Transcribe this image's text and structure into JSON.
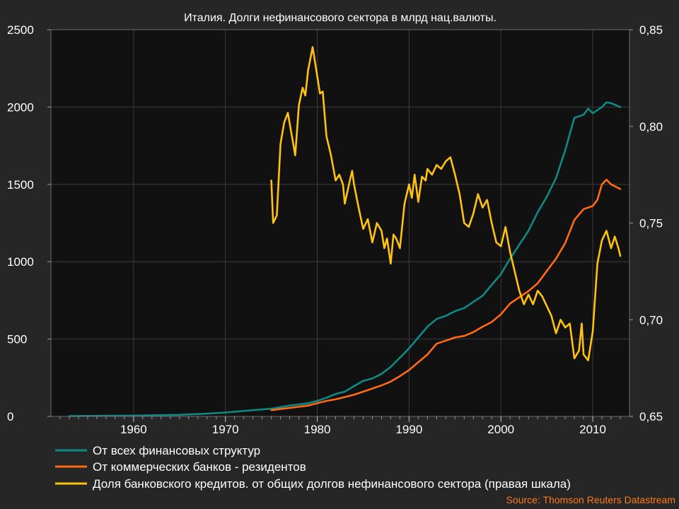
{
  "chart_data": {
    "type": "line",
    "title": "Италия. Долги нефинансового сектора в млрд нац.валюты.",
    "source": "Source: Thomson Reuters Datastream",
    "x_range": [
      1951,
      2014
    ],
    "x_ticks": [
      1960,
      1970,
      1980,
      1990,
      2000,
      2010
    ],
    "left_axis": {
      "range": [
        0,
        2500
      ],
      "ticks": [
        "0",
        "500",
        "1000",
        "1500",
        "2000",
        "2500"
      ],
      "tick_values": [
        0,
        500,
        1000,
        1500,
        2000,
        2500
      ]
    },
    "right_axis": {
      "range": [
        0.65,
        0.85
      ],
      "ticks": [
        "0,65",
        "0,70",
        "0,75",
        "0,80",
        "0,85"
      ],
      "tick_values": [
        0.65,
        0.7,
        0.75,
        0.8,
        0.85
      ]
    },
    "grid": true,
    "legend_position": "bottom",
    "colors": {
      "background": "#262626",
      "plot_background": "#111111",
      "grid": "#3c3c3c"
    },
    "series": [
      {
        "name": "От всех финансовых структур",
        "axis": "left",
        "color": "#0e8a86",
        "points": [
          [
            1953,
            2
          ],
          [
            1955,
            3
          ],
          [
            1960,
            5
          ],
          [
            1965,
            10
          ],
          [
            1968,
            18
          ],
          [
            1970,
            25
          ],
          [
            1972,
            35
          ],
          [
            1975,
            50
          ],
          [
            1977,
            70
          ],
          [
            1979,
            85
          ],
          [
            1980,
            100
          ],
          [
            1981,
            120
          ],
          [
            1982,
            145
          ],
          [
            1983,
            160
          ],
          [
            1984,
            195
          ],
          [
            1985,
            230
          ],
          [
            1986,
            245
          ],
          [
            1987,
            275
          ],
          [
            1988,
            320
          ],
          [
            1989,
            380
          ],
          [
            1990,
            440
          ],
          [
            1991,
            510
          ],
          [
            1992,
            580
          ],
          [
            1993,
            630
          ],
          [
            1994,
            650
          ],
          [
            1995,
            680
          ],
          [
            1996,
            700
          ],
          [
            1997,
            740
          ],
          [
            1998,
            780
          ],
          [
            1999,
            850
          ],
          [
            2000,
            920
          ],
          [
            2001,
            1020
          ],
          [
            2002,
            1110
          ],
          [
            2003,
            1200
          ],
          [
            2004,
            1320
          ],
          [
            2005,
            1420
          ],
          [
            2006,
            1540
          ],
          [
            2007,
            1720
          ],
          [
            2008,
            1930
          ],
          [
            2009,
            1950
          ],
          [
            2009.5,
            1990
          ],
          [
            2010,
            1960
          ],
          [
            2011,
            2000
          ],
          [
            2011.5,
            2030
          ],
          [
            2012,
            2025
          ],
          [
            2013,
            2000
          ]
        ]
      },
      {
        "name": "От коммерческих банков - резидентов",
        "axis": "left",
        "color": "#ff6a13",
        "points": [
          [
            1975,
            40
          ],
          [
            1977,
            55
          ],
          [
            1979,
            70
          ],
          [
            1980,
            85
          ],
          [
            1981,
            100
          ],
          [
            1982,
            110
          ],
          [
            1983,
            125
          ],
          [
            1984,
            140
          ],
          [
            1985,
            160
          ],
          [
            1986,
            180
          ],
          [
            1987,
            200
          ],
          [
            1988,
            225
          ],
          [
            1989,
            260
          ],
          [
            1990,
            300
          ],
          [
            1991,
            350
          ],
          [
            1992,
            400
          ],
          [
            1993,
            470
          ],
          [
            1994,
            490
          ],
          [
            1995,
            510
          ],
          [
            1996,
            520
          ],
          [
            1997,
            545
          ],
          [
            1998,
            580
          ],
          [
            1999,
            610
          ],
          [
            2000,
            660
          ],
          [
            2001,
            730
          ],
          [
            2002,
            770
          ],
          [
            2003,
            810
          ],
          [
            2004,
            860
          ],
          [
            2005,
            940
          ],
          [
            2006,
            1020
          ],
          [
            2007,
            1120
          ],
          [
            2008,
            1270
          ],
          [
            2009,
            1340
          ],
          [
            2010,
            1360
          ],
          [
            2010.5,
            1400
          ],
          [
            2011,
            1500
          ],
          [
            2011.5,
            1530
          ],
          [
            2012,
            1500
          ],
          [
            2013,
            1470
          ]
        ]
      },
      {
        "name": "Доля банковского кредитов. от общих долгов нефинансового сектора (правая шкала)",
        "axis": "right",
        "color": "#ffc20e",
        "points": [
          [
            1975,
            0.772
          ],
          [
            1975.2,
            0.75
          ],
          [
            1975.6,
            0.754
          ],
          [
            1976,
            0.791
          ],
          [
            1976.4,
            0.802
          ],
          [
            1976.8,
            0.807
          ],
          [
            1977.2,
            0.796
          ],
          [
            1977.6,
            0.785
          ],
          [
            1978,
            0.811
          ],
          [
            1978.4,
            0.82
          ],
          [
            1978.7,
            0.816
          ],
          [
            1979,
            0.829
          ],
          [
            1979.5,
            0.841
          ],
          [
            1980,
            0.826
          ],
          [
            1980.3,
            0.817
          ],
          [
            1980.6,
            0.818
          ],
          [
            1981,
            0.795
          ],
          [
            1981.5,
            0.785
          ],
          [
            1982,
            0.772
          ],
          [
            1982.4,
            0.775
          ],
          [
            1982.8,
            0.77
          ],
          [
            1983,
            0.76
          ],
          [
            1983.5,
            0.771
          ],
          [
            1983.8,
            0.777
          ],
          [
            1984,
            0.77
          ],
          [
            1984.5,
            0.758
          ],
          [
            1985,
            0.747
          ],
          [
            1985.5,
            0.752
          ],
          [
            1986,
            0.74
          ],
          [
            1986.5,
            0.75
          ],
          [
            1987,
            0.746
          ],
          [
            1987.3,
            0.737
          ],
          [
            1987.6,
            0.742
          ],
          [
            1988,
            0.729
          ],
          [
            1988.3,
            0.744
          ],
          [
            1988.6,
            0.742
          ],
          [
            1989,
            0.737
          ],
          [
            1989.5,
            0.76
          ],
          [
            1990,
            0.77
          ],
          [
            1990.3,
            0.763
          ],
          [
            1990.6,
            0.775
          ],
          [
            1991,
            0.761
          ],
          [
            1991.4,
            0.774
          ],
          [
            1991.8,
            0.772
          ],
          [
            1992,
            0.778
          ],
          [
            1992.5,
            0.775
          ],
          [
            1993,
            0.78
          ],
          [
            1993.5,
            0.778
          ],
          [
            1994,
            0.782
          ],
          [
            1994.5,
            0.784
          ],
          [
            1995,
            0.775
          ],
          [
            1995.5,
            0.765
          ],
          [
            1996,
            0.75
          ],
          [
            1996.5,
            0.748
          ],
          [
            1997,
            0.755
          ],
          [
            1997.5,
            0.765
          ],
          [
            1998,
            0.758
          ],
          [
            1998.5,
            0.762
          ],
          [
            1999,
            0.75
          ],
          [
            1999.5,
            0.74
          ],
          [
            2000,
            0.738
          ],
          [
            2000.5,
            0.748
          ],
          [
            2001,
            0.735
          ],
          [
            2001.5,
            0.725
          ],
          [
            2002,
            0.715
          ],
          [
            2002.5,
            0.708
          ],
          [
            2003,
            0.713
          ],
          [
            2003.5,
            0.708
          ],
          [
            2004,
            0.715
          ],
          [
            2004.5,
            0.712
          ],
          [
            2005,
            0.707
          ],
          [
            2005.5,
            0.702
          ],
          [
            2006,
            0.693
          ],
          [
            2006.5,
            0.7
          ],
          [
            2007,
            0.696
          ],
          [
            2007.5,
            0.698
          ],
          [
            2008,
            0.68
          ],
          [
            2008.5,
            0.684
          ],
          [
            2008.8,
            0.698
          ],
          [
            2009,
            0.682
          ],
          [
            2009.5,
            0.679
          ],
          [
            2010,
            0.694
          ],
          [
            2010.5,
            0.729
          ],
          [
            2011,
            0.741
          ],
          [
            2011.5,
            0.746
          ],
          [
            2012,
            0.737
          ],
          [
            2012.4,
            0.743
          ],
          [
            2012.8,
            0.737
          ],
          [
            2013,
            0.733
          ]
        ]
      }
    ]
  }
}
